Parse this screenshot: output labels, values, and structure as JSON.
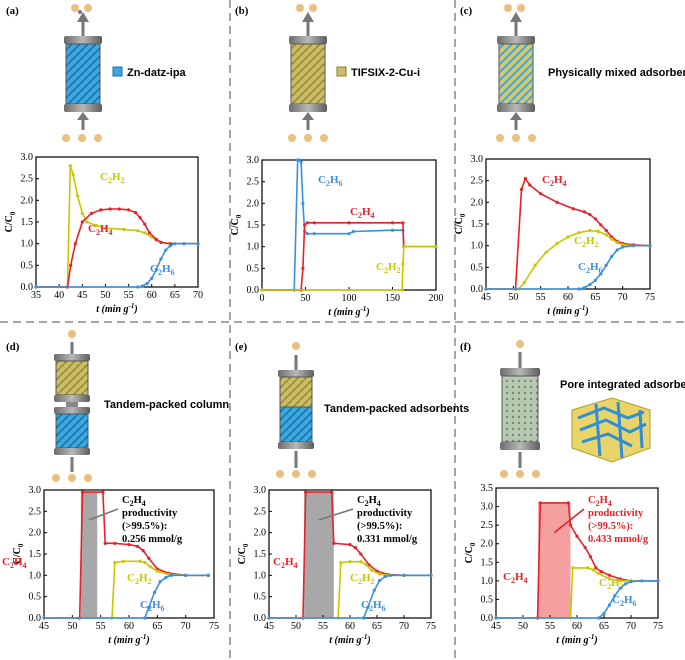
{
  "panels": [
    {
      "label": "(a)",
      "caption": "Zn-datz-ipa"
    },
    {
      "label": "(b)",
      "caption": "TIFSIX-2-Cu-i"
    },
    {
      "label": "(c)",
      "caption": "Physically mixed  adsorbents"
    },
    {
      "label": "(d)",
      "caption": "Tandem-packed column"
    },
    {
      "label": "(e)",
      "caption": "Tandem-packed adsorbents"
    },
    {
      "label": "(f)",
      "caption": "Pore integrated  adsorbent"
    }
  ],
  "axis": {
    "ylabel_main": "C/C",
    "ylabel_sub": "0",
    "xlabel_main": "t (min g",
    "xlabel_sup": "-1",
    "xlabel_close": ")"
  },
  "colors": {
    "c2h2": "#c8c800",
    "c2h4": "#e8202a",
    "c2h6": "#3a8fe0",
    "fill_f": "#f4a0a0",
    "fill_de": "#a8a8a8",
    "zn": "#3aa9e0",
    "tif": "#c9bd68"
  },
  "series_labels": {
    "c2h2": {
      "main": "C",
      "s1": "2",
      "mid": "H",
      "s2": "2"
    },
    "c2h4": {
      "main": "C",
      "s1": "2",
      "mid": "H",
      "s2": "4"
    },
    "c2h6": {
      "main": "C",
      "s1": "2",
      "mid": "H",
      "s2": "6"
    }
  },
  "annotations": {
    "d": {
      "title": "C",
      "title_s1": "2",
      "title_mid": "H",
      "title_s2": "4",
      "line1": "productivity",
      "line2": "(>99.5%):",
      "value": "0.256 mmol/g"
    },
    "e": {
      "title": "C",
      "title_s1": "2",
      "title_mid": "H",
      "title_s2": "4",
      "line1": "productivity",
      "line2": "(>99.5%):",
      "value": "0.331 mmol/g"
    },
    "f": {
      "title": "C",
      "title_s1": "2",
      "title_mid": "H",
      "title_s2": "4",
      "line1": "productivity",
      "line2": "(>99.5%):",
      "value": "0.433 mmol/g"
    }
  },
  "chart_data": [
    {
      "panel": "a",
      "type": "line",
      "xlim": [
        35,
        70
      ],
      "ylim": [
        0,
        3.0
      ],
      "xticks": [
        35,
        40,
        45,
        50,
        55,
        60,
        65,
        70
      ],
      "yticks": [
        0.0,
        0.5,
        1.0,
        1.5,
        2.0,
        2.5,
        3.0
      ],
      "series": [
        {
          "name": "C2H2",
          "x": [
            35,
            41.8,
            42.4,
            43,
            44,
            45,
            46,
            48,
            50,
            54,
            57,
            58.5,
            60,
            61,
            62,
            64,
            67,
            70
          ],
          "y": [
            0,
            0,
            2.8,
            2.6,
            2.1,
            1.7,
            1.5,
            1.42,
            1.36,
            1.33,
            1.3,
            1.25,
            1.15,
            1.08,
            1.03,
            1.0,
            1.0,
            1.0
          ]
        },
        {
          "name": "C2H4",
          "x": [
            35,
            41.8,
            42.5,
            43.5,
            45,
            47,
            49,
            51,
            53,
            55,
            56.5,
            57.5,
            58.5,
            59.5,
            61,
            62,
            64,
            67,
            70
          ],
          "y": [
            0,
            0,
            0.5,
            1.0,
            1.5,
            1.7,
            1.78,
            1.8,
            1.8,
            1.78,
            1.72,
            1.6,
            1.45,
            1.25,
            1.1,
            1.03,
            1.0,
            1.0,
            1.0
          ]
        },
        {
          "name": "C2H6",
          "x": [
            35,
            57,
            58,
            59,
            60,
            61,
            62,
            63,
            64,
            65,
            67,
            70
          ],
          "y": [
            0,
            0,
            0.02,
            0.08,
            0.2,
            0.4,
            0.65,
            0.85,
            0.95,
            1.0,
            1.0,
            1.0
          ]
        }
      ]
    },
    {
      "panel": "b",
      "type": "line",
      "xlim": [
        0,
        200
      ],
      "ylim": [
        0,
        3.0
      ],
      "xticks": [
        0,
        50,
        100,
        150,
        200
      ],
      "yticks": [
        0.0,
        0.5,
        1.0,
        1.5,
        2.0,
        2.5,
        3.0
      ],
      "series": [
        {
          "name": "C2H6",
          "x": [
            0,
            37,
            41,
            43,
            45,
            47,
            49,
            52,
            60,
            100,
            105,
            150,
            162,
            163,
            200
          ],
          "y": [
            0,
            0,
            3.0,
            3.0,
            2.95,
            2.0,
            1.35,
            1.3,
            1.3,
            1.3,
            1.35,
            1.38,
            1.38,
            1.0,
            1.0
          ]
        },
        {
          "name": "C2H4",
          "x": [
            0,
            45,
            47,
            49,
            52,
            60,
            100,
            150,
            162,
            163,
            200
          ],
          "y": [
            0,
            0,
            0.5,
            1.5,
            1.55,
            1.55,
            1.55,
            1.55,
            1.55,
            1.0,
            1.0
          ]
        },
        {
          "name": "C2H2",
          "x": [
            0,
            161,
            162,
            163,
            200
          ],
          "y": [
            0,
            0,
            0.6,
            1.0,
            1.0
          ]
        }
      ]
    },
    {
      "panel": "c",
      "type": "line",
      "xlim": [
        45,
        75
      ],
      "ylim": [
        0,
        3.0
      ],
      "xticks": [
        45,
        50,
        55,
        60,
        65,
        70,
        75
      ],
      "yticks": [
        0.0,
        0.5,
        1.0,
        1.5,
        2.0,
        2.5,
        3.0
      ],
      "series": [
        {
          "name": "C2H4",
          "x": [
            45,
            50.4,
            51.5,
            52.2,
            53,
            55,
            58,
            61,
            63,
            64,
            65,
            66,
            67,
            68,
            69,
            70,
            72,
            75
          ],
          "y": [
            0,
            0,
            2.3,
            2.55,
            2.4,
            2.2,
            2.0,
            1.85,
            1.78,
            1.72,
            1.62,
            1.48,
            1.35,
            1.2,
            1.1,
            1.05,
            1.02,
            1.0
          ]
        },
        {
          "name": "C2H2",
          "x": [
            45,
            51,
            52,
            54,
            56,
            58,
            60,
            62,
            64,
            65.5,
            67,
            68,
            69,
            70,
            72,
            75
          ],
          "y": [
            0,
            0,
            0.15,
            0.55,
            0.85,
            1.05,
            1.2,
            1.3,
            1.35,
            1.33,
            1.25,
            1.15,
            1.07,
            1.02,
            1.0,
            1.0
          ]
        },
        {
          "name": "C2H6",
          "x": [
            45,
            62,
            63,
            64,
            65,
            66,
            67,
            68,
            69,
            70,
            72,
            75
          ],
          "y": [
            0,
            0,
            0.03,
            0.1,
            0.2,
            0.35,
            0.55,
            0.75,
            0.9,
            0.97,
            1.0,
            1.0
          ]
        }
      ]
    },
    {
      "panel": "d",
      "type": "line",
      "xlim": [
        45,
        75
      ],
      "ylim": [
        0,
        3.0
      ],
      "xticks": [
        45,
        50,
        55,
        60,
        65,
        70,
        75
      ],
      "yticks": [
        0.0,
        0.5,
        1.0,
        1.5,
        2.0,
        2.5,
        3.0
      ],
      "shaded": {
        "x0": 51.5,
        "x1": 54.4
      },
      "series": [
        {
          "name": "C2H4",
          "x": [
            45,
            51.3,
            51.8,
            55.4,
            55.8,
            57.5,
            60,
            61.5,
            62.5,
            63.5,
            65,
            67,
            70,
            74
          ],
          "y": [
            0,
            0,
            2.95,
            2.95,
            1.75,
            1.75,
            1.72,
            1.68,
            1.58,
            1.4,
            1.15,
            1.05,
            1.0,
            1.0
          ]
        },
        {
          "name": "C2H2",
          "x": [
            45,
            57,
            57.5,
            59,
            62,
            62.8,
            63.8,
            65,
            67,
            70,
            74
          ],
          "y": [
            0,
            0,
            1.3,
            1.33,
            1.33,
            1.3,
            1.2,
            1.1,
            1.02,
            1.0,
            1.0
          ]
        },
        {
          "name": "C2H6",
          "x": [
            45,
            62.8,
            63.5,
            64.5,
            65.5,
            66.5,
            67.5,
            70,
            74
          ],
          "y": [
            0,
            0,
            0.25,
            0.6,
            0.85,
            0.95,
            1.0,
            1.0,
            1.0
          ]
        }
      ]
    },
    {
      "panel": "e",
      "type": "line",
      "xlim": [
        45,
        75
      ],
      "ylim": [
        0,
        3.0
      ],
      "xticks": [
        45,
        50,
        55,
        60,
        65,
        70,
        75
      ],
      "yticks": [
        0.0,
        0.5,
        1.0,
        1.5,
        2.0,
        2.5,
        3.0
      ],
      "shaded": {
        "x0": 51.5,
        "x1": 57.0
      },
      "series": [
        {
          "name": "C2H4",
          "x": [
            45,
            51.3,
            51.8,
            56.6,
            57.0,
            60,
            61,
            62,
            63.5,
            65,
            67,
            70,
            75
          ],
          "y": [
            0,
            0,
            2.95,
            2.95,
            1.75,
            1.72,
            1.65,
            1.5,
            1.25,
            1.1,
            1.02,
            1.0,
            1.0
          ]
        },
        {
          "name": "C2H2",
          "x": [
            45,
            57.8,
            58.3,
            60,
            62,
            63,
            64,
            65.5,
            67,
            70,
            75
          ],
          "y": [
            0,
            0,
            1.3,
            1.32,
            1.32,
            1.25,
            1.12,
            1.03,
            1.0,
            1.0,
            1.0
          ]
        },
        {
          "name": "C2H6",
          "x": [
            45,
            62.5,
            63.3,
            64.5,
            65.5,
            66.5,
            67.5,
            70,
            75
          ],
          "y": [
            0,
            0,
            0.25,
            0.65,
            0.88,
            0.97,
            1.0,
            1.0,
            1.0
          ]
        }
      ]
    },
    {
      "panel": "f",
      "type": "line",
      "xlim": [
        45,
        75
      ],
      "ylim": [
        0,
        3.5
      ],
      "xticks": [
        45,
        50,
        55,
        60,
        65,
        70,
        75
      ],
      "yticks": [
        0.0,
        0.5,
        1.0,
        1.5,
        2.0,
        2.5,
        3.0,
        3.5
      ],
      "shaded": {
        "x0": 52.8,
        "x1": 58.8
      },
      "series": [
        {
          "name": "C2H4",
          "x": [
            45,
            52.7,
            53.2,
            58.4,
            58.8,
            60,
            61.5,
            62.5,
            63.5,
            64.5,
            66,
            68,
            70,
            75
          ],
          "y": [
            0,
            0,
            3.1,
            3.1,
            2.5,
            2.2,
            1.9,
            1.65,
            1.35,
            1.25,
            1.15,
            1.05,
            1.0,
            1.0
          ]
        },
        {
          "name": "C2H2",
          "x": [
            45,
            58.8,
            59.2,
            62,
            63,
            64,
            66,
            68,
            70,
            75
          ],
          "y": [
            0,
            0,
            1.35,
            1.35,
            1.3,
            1.2,
            1.05,
            1.0,
            1.0,
            1.0
          ]
        },
        {
          "name": "C2H6",
          "x": [
            45,
            64,
            65,
            66,
            67,
            68,
            69,
            70,
            72,
            75
          ],
          "y": [
            0,
            0,
            0.12,
            0.35,
            0.6,
            0.8,
            0.92,
            0.98,
            1.0,
            1.0
          ]
        }
      ]
    }
  ]
}
